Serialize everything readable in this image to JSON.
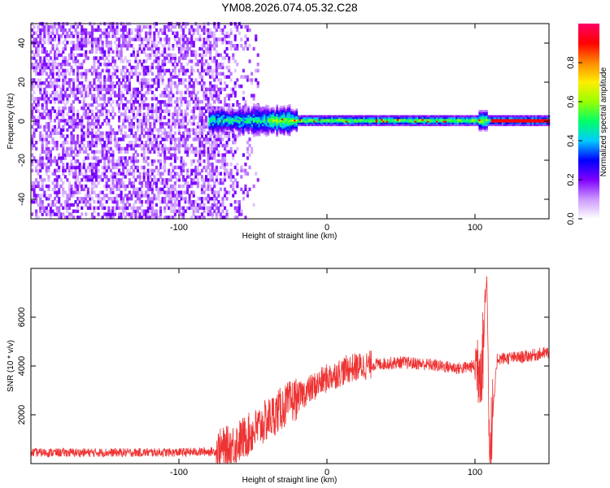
{
  "title": "YM08.2026.074.05.32.C28",
  "chart_data": [
    {
      "type": "heatmap",
      "name": "spectrogram",
      "xlabel": "Height of straight line (km)",
      "ylabel": "Frequency (Hz)",
      "xlim": [
        -200,
        150
      ],
      "ylim": [
        -50,
        50
      ],
      "xticks": [
        -100,
        0,
        100
      ],
      "yticks": [
        -40,
        -20,
        0,
        20,
        40
      ],
      "description_features": {
        "noise_region_x": [
          -200,
          -45
        ],
        "signal_start_x": -80,
        "signal_center_y": 0,
        "signal_halfwidth_y": 3,
        "spike_x": 105
      },
      "colorbar": {
        "label": "Normalized spectral amplitude",
        "range": [
          0,
          1
        ],
        "ticks": [
          0.0,
          0.2,
          0.4,
          0.6,
          0.8
        ],
        "tick_labels": [
          "0.0",
          "0.2",
          "0.4",
          "0.6",
          "0.8"
        ],
        "colors": [
          "#ffffff",
          "#cc99ff",
          "#7f00ff",
          "#0000ff",
          "#00ccff",
          "#00ff66",
          "#99ff00",
          "#ffee00",
          "#ff8800",
          "#ff0000",
          "#ff0066"
        ]
      }
    },
    {
      "type": "line",
      "name": "snr",
      "xlabel": "Height of straight line (km)",
      "ylabel": "SNR (10 * v/v)",
      "xlim": [
        -200,
        150
      ],
      "ylim": [
        0,
        8000
      ],
      "xticks": [
        -100,
        0,
        100
      ],
      "yticks": [
        2000,
        4000,
        6000
      ],
      "color": "#ee3333",
      "key_points": {
        "x": [
          -200,
          -150,
          -100,
          -75,
          -65,
          -50,
          -30,
          -15,
          0,
          15,
          30,
          50,
          70,
          90,
          100,
          105,
          108,
          110,
          115,
          130,
          150
        ],
        "y": [
          450,
          450,
          460,
          500,
          700,
          1300,
          2300,
          2900,
          3500,
          3900,
          4050,
          4150,
          4050,
          3900,
          4000,
          4200,
          7700,
          300,
          4300,
          4350,
          4550
        ]
      }
    }
  ]
}
